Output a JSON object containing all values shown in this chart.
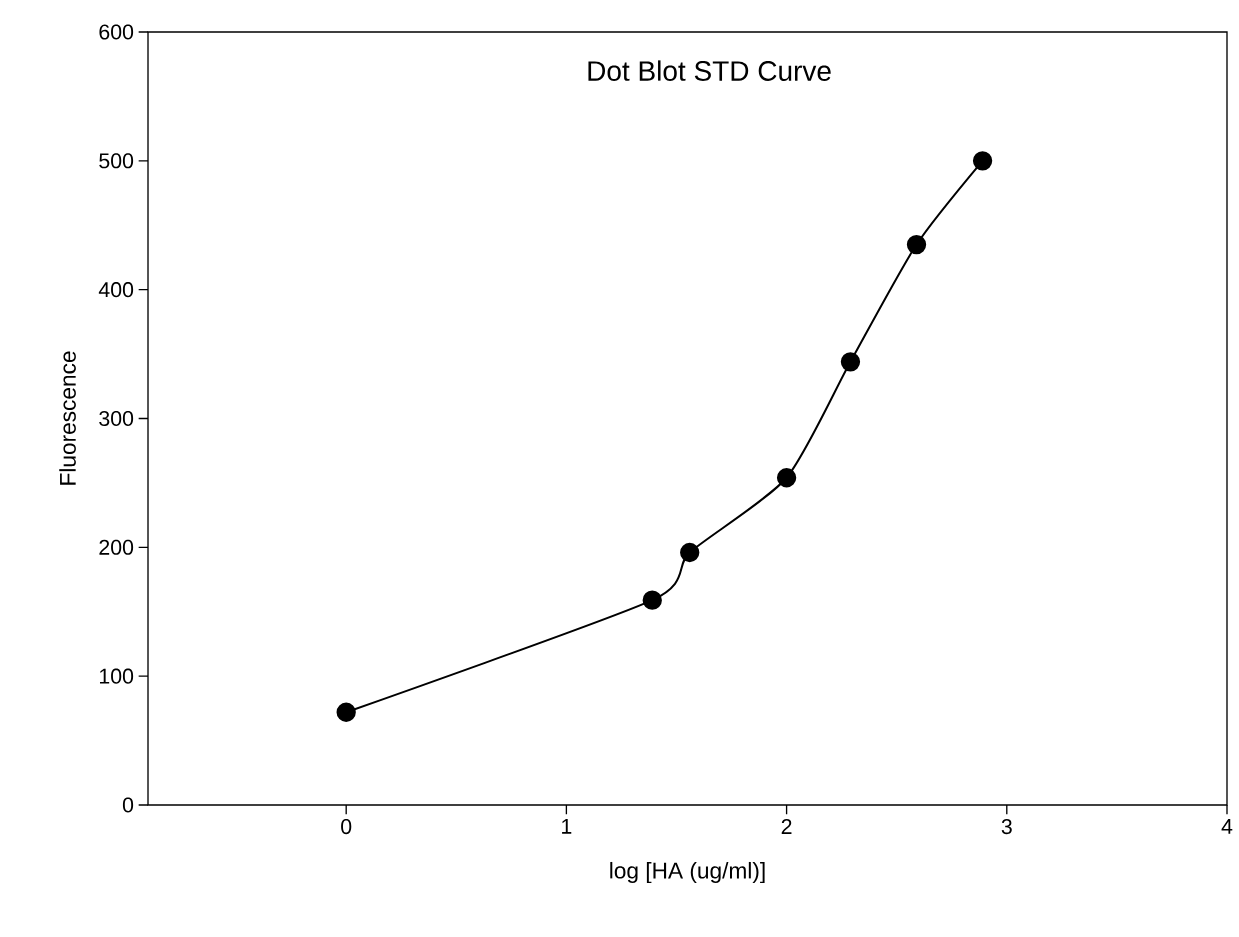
{
  "chart_data": {
    "type": "line",
    "title": "Dot Blot STD Curve",
    "xlabel": "log [HA (ug/ml)]",
    "ylabel": "Fluorescence",
    "x": [
      0,
      1.39,
      1.56,
      2.0,
      2.29,
      2.59,
      2.89
    ],
    "series": [
      {
        "color": "#000000",
        "values": [
          72,
          159,
          196,
          254,
          344,
          435,
          500
        ]
      }
    ],
    "marker": "circle",
    "line_style": "solid",
    "grid": false,
    "xlim": [
      -0.9,
      4
    ],
    "xticks": [
      0,
      1,
      2,
      3,
      4
    ],
    "ylim": [
      0,
      600
    ],
    "yticks": [
      0,
      100,
      200,
      300,
      400,
      500,
      600
    ]
  }
}
